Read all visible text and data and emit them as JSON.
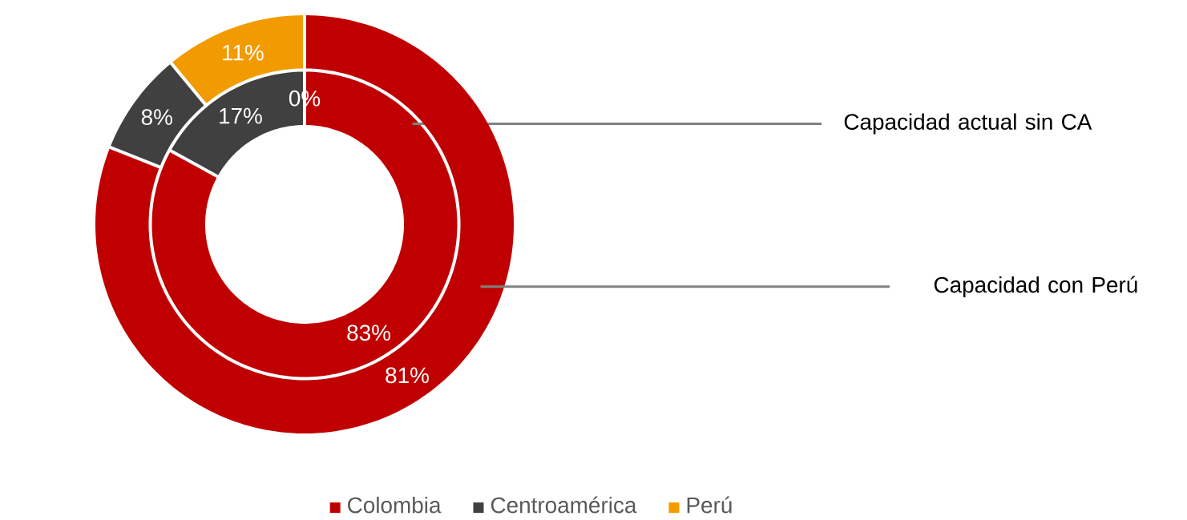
{
  "chart_data": {
    "type": "donut",
    "categories": [
      "Colombia",
      "Centroamérica",
      "Perú"
    ],
    "colors": [
      "#c00000",
      "#404040",
      "#f29b00"
    ],
    "series": [
      {
        "name": "Capacidad actual sin CA",
        "values": [
          83,
          17,
          0
        ],
        "value_labels": [
          "83%",
          "17%",
          "0%"
        ]
      },
      {
        "name": "Capacidad con Perú",
        "values": [
          81,
          8,
          11
        ],
        "value_labels": [
          "81%",
          "8%",
          "11%"
        ]
      }
    ],
    "data_labels": true,
    "legend": "bottom"
  }
}
